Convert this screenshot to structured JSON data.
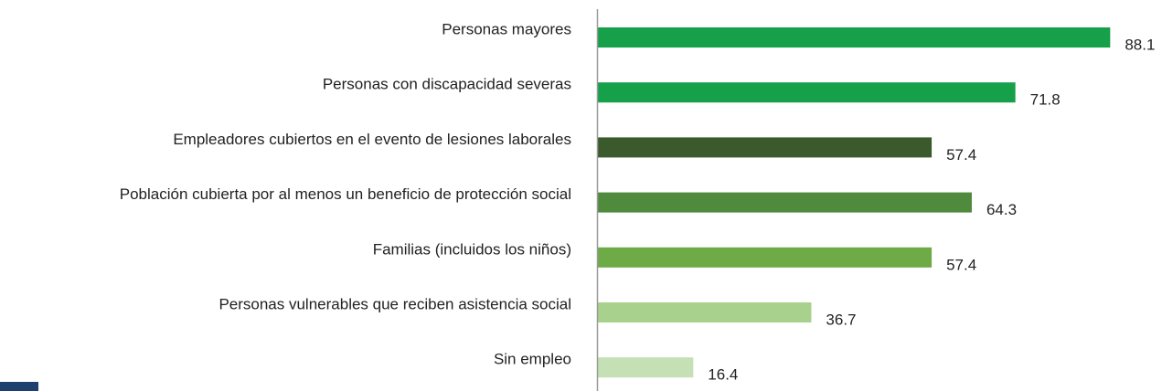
{
  "chart_data": {
    "type": "barh",
    "categories": [
      "Personas mayores",
      "Personas con discapacidad severas",
      "Empleadores cubiertos en el evento de lesiones laborales",
      "Población cubierta por al menos un beneficio de protección social",
      "Familias (incluidos los niños)",
      "Personas vulnerables que reciben asistencia social",
      "Sin empleo"
    ],
    "values": [
      88.1,
      71.8,
      57.4,
      64.3,
      57.4,
      36.7,
      16.4
    ],
    "colors": [
      "#16a04a",
      "#16a04a",
      "#3b5a2b",
      "#4f8a3d",
      "#6eaa46",
      "#a8d18d",
      "#c5e0b4"
    ],
    "xlim": [
      0,
      100
    ]
  }
}
